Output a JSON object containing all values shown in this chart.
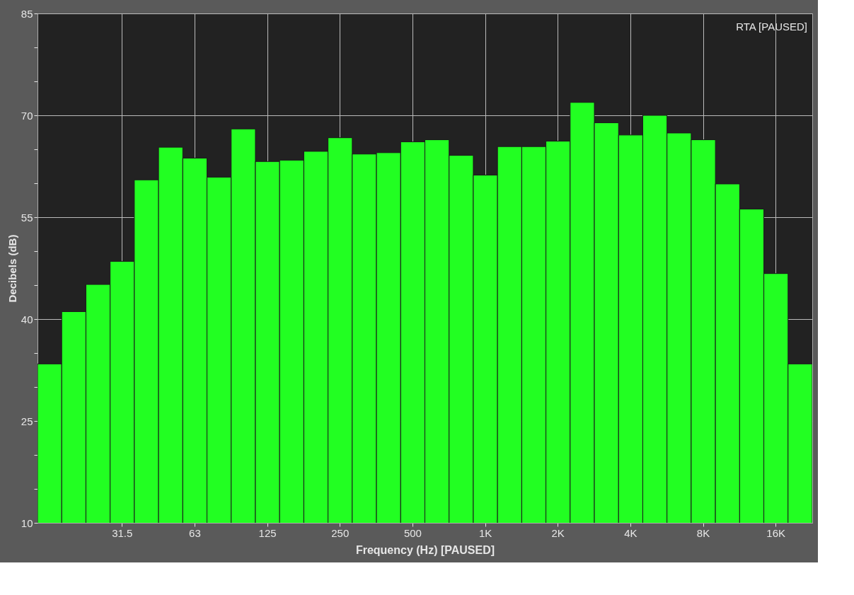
{
  "chart_data": {
    "type": "bar",
    "xlabel": "Frequency (Hz) [PAUSED]",
    "ylabel": "Decibels (dB)",
    "annotations": [
      "RTA [PAUSED]"
    ],
    "categories": [
      null,
      null,
      null,
      "31.5",
      null,
      null,
      "63",
      null,
      null,
      "125",
      null,
      null,
      "250",
      null,
      null,
      "500",
      null,
      null,
      "1K",
      null,
      null,
      "2K",
      null,
      null,
      "4K",
      null,
      null,
      "8K",
      null,
      null,
      "16K",
      null
    ],
    "values": [
      33.4,
      41.1,
      45.1,
      48.5,
      60.5,
      65.3,
      63.7,
      60.9,
      68.0,
      63.2,
      63.4,
      64.7,
      66.7,
      64.3,
      64.5,
      66.1,
      66.4,
      64.1,
      61.2,
      65.4,
      65.4,
      66.2,
      71.9,
      68.9,
      67.1,
      70.0,
      67.4,
      66.4,
      59.9,
      56.2,
      46.7,
      33.4
    ],
    "color": "#22ff22",
    "ylim": [
      10,
      85
    ],
    "yticks": [
      10,
      {
        "value": 15,
        "label": null
      },
      {
        "value": 20,
        "label": null
      },
      25,
      {
        "value": 30,
        "label": null
      },
      {
        "value": 35,
        "label": null
      },
      40,
      {
        "value": 45,
        "label": null
      },
      {
        "value": 50,
        "label": null
      },
      55,
      {
        "value": 60,
        "label": null
      },
      {
        "value": 65,
        "label": null
      },
      70,
      {
        "value": 75,
        "label": null
      },
      {
        "value": 80,
        "label": null
      },
      85
    ],
    "grid": true
  }
}
